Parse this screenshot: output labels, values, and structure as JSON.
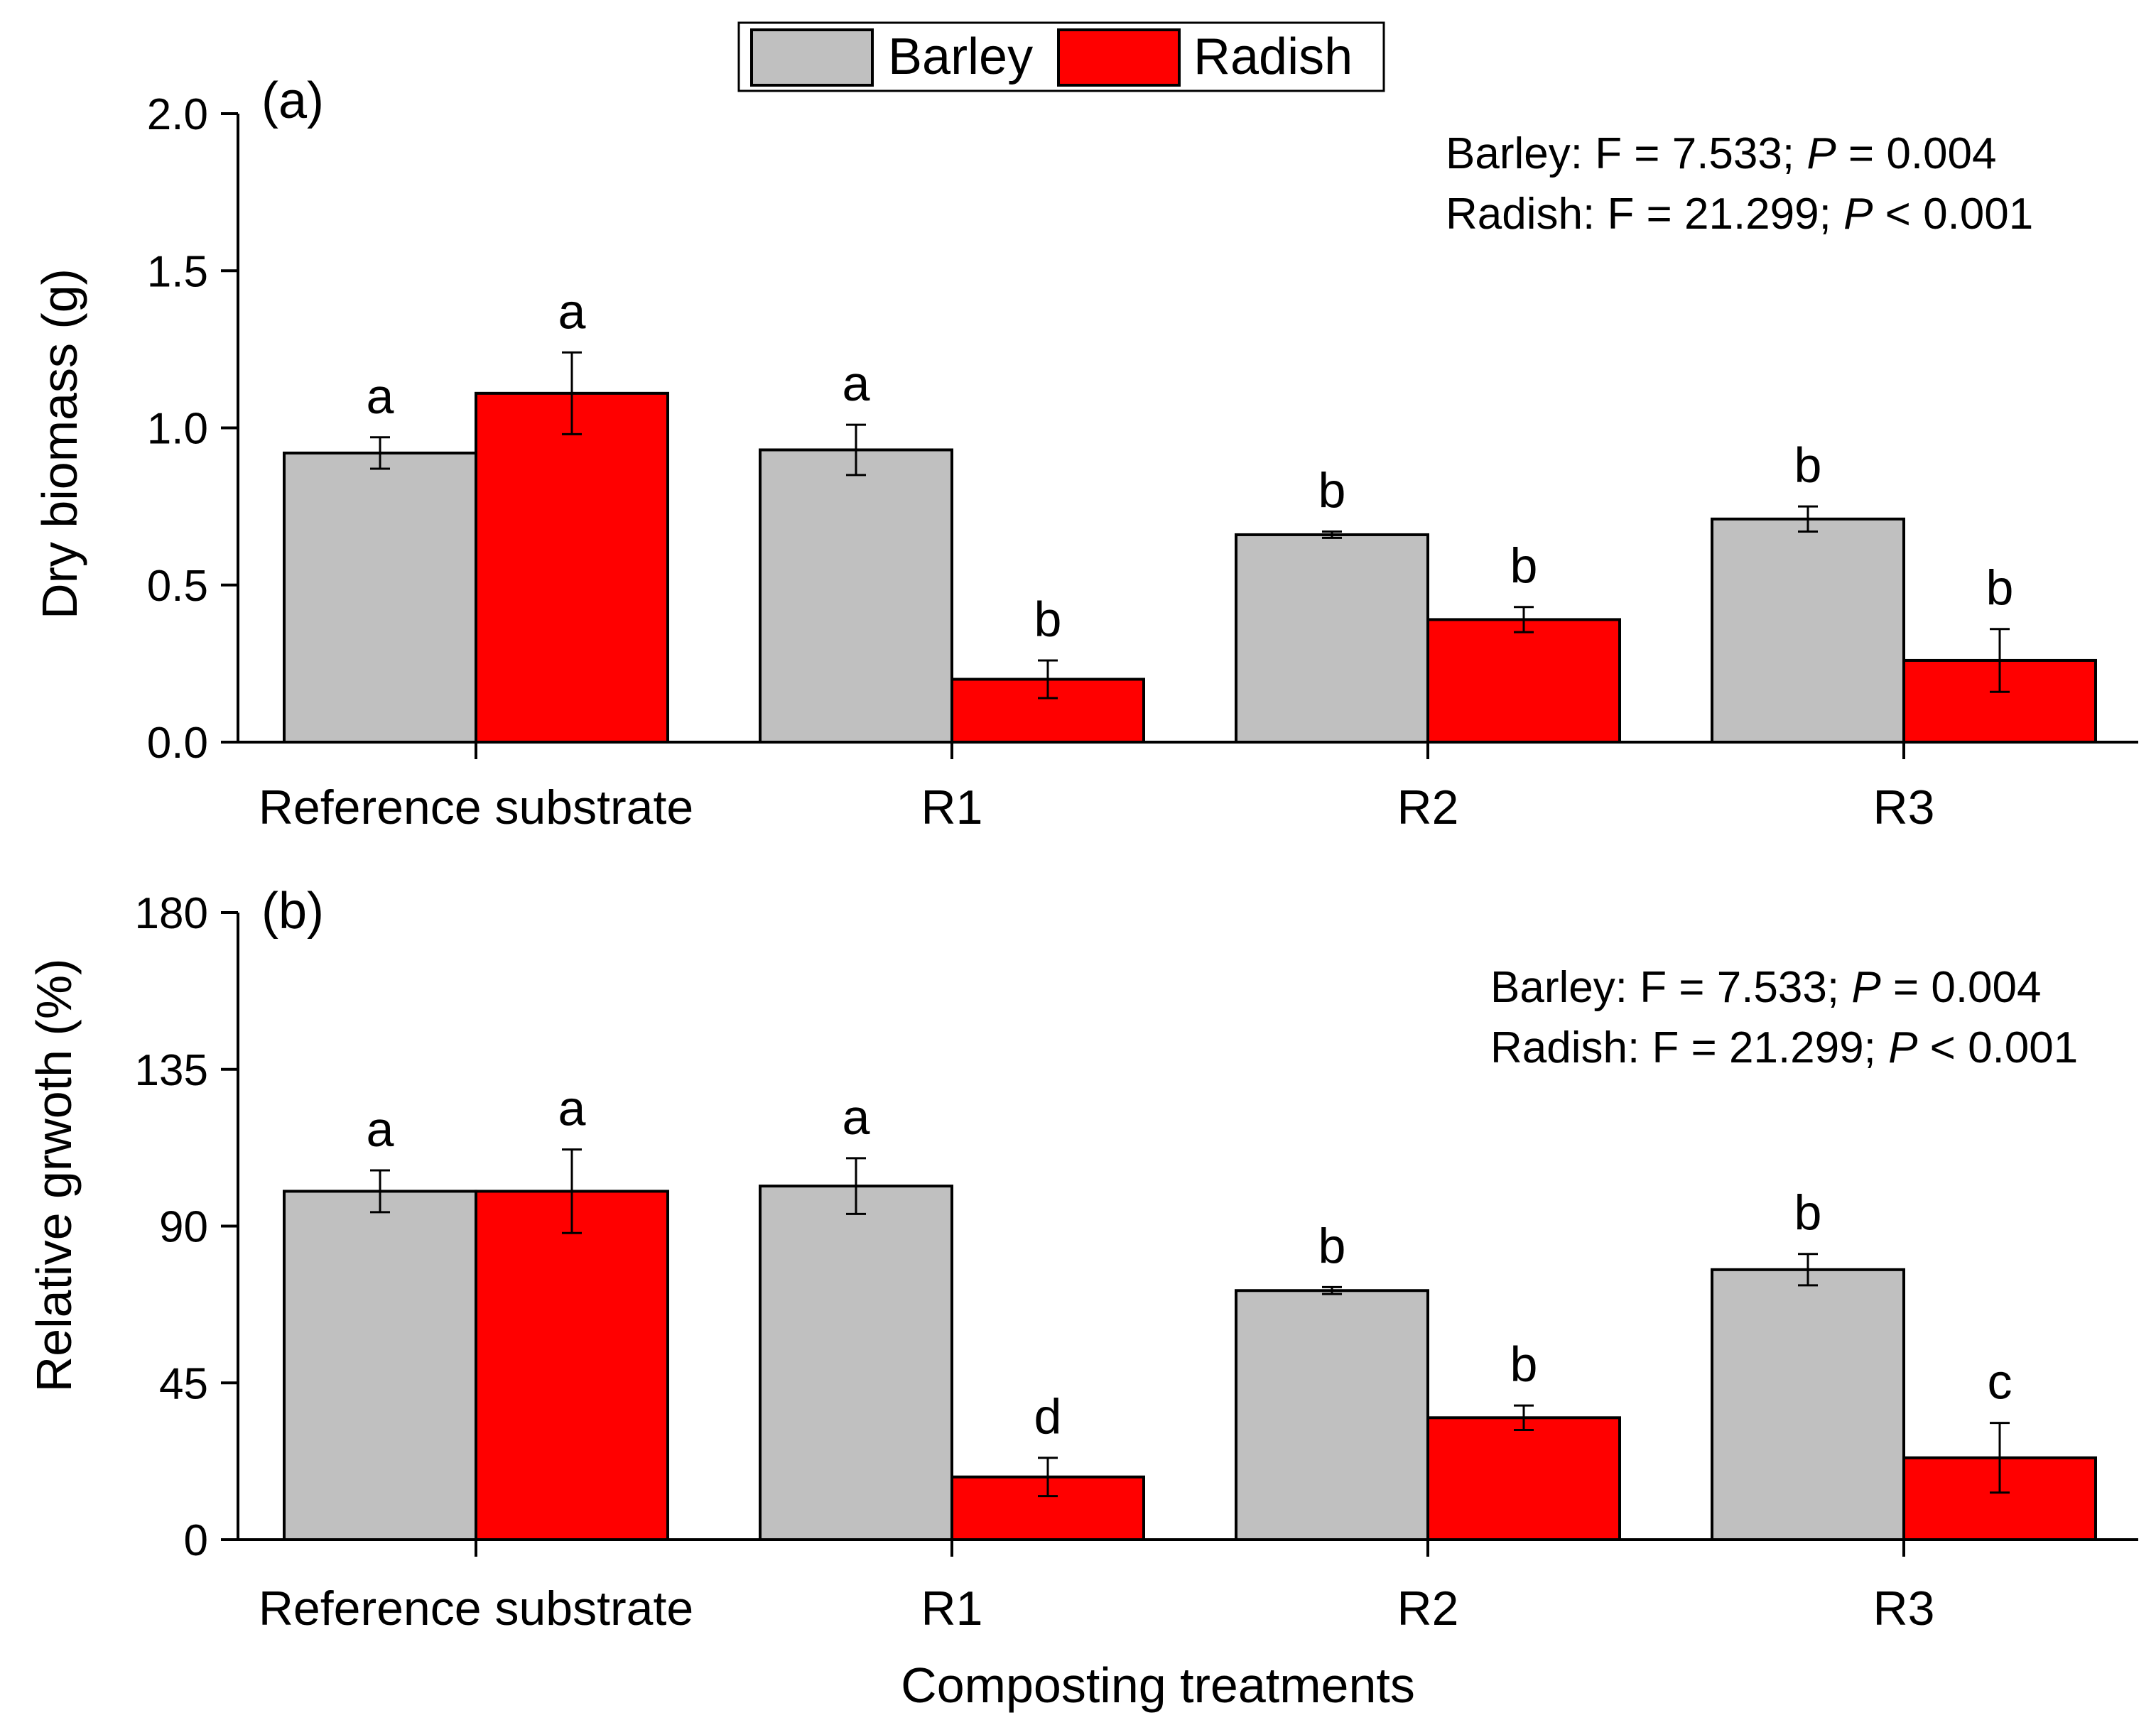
{
  "legend": {
    "items": [
      {
        "label": "Barley",
        "color": "#C0C0C0"
      },
      {
        "label": "Radish",
        "color": "#FF0000"
      }
    ]
  },
  "chart_data": [
    {
      "type": "bar",
      "panel_label": "(a)",
      "title": "",
      "xlabel": "",
      "ylabel": "Dry biomass (g)",
      "ylim": [
        0,
        2.0
      ],
      "yticks": [
        "0.0",
        "0.5",
        "1.0",
        "1.5",
        "2.0"
      ],
      "ytick_values": [
        0,
        0.5,
        1.0,
        1.5,
        2.0
      ],
      "categories": [
        "Reference substrate",
        "R1",
        "R2",
        "R3"
      ],
      "series": [
        {
          "name": "Barley",
          "values": [
            0.92,
            0.93,
            0.66,
            0.71
          ],
          "errors": [
            0.05,
            0.08,
            0.01,
            0.04
          ],
          "letters": [
            "a",
            "a",
            "b",
            "b"
          ]
        },
        {
          "name": "Radish",
          "values": [
            1.11,
            0.2,
            0.39,
            0.26
          ],
          "errors": [
            0.13,
            0.06,
            0.04,
            0.1
          ],
          "letters": [
            "a",
            "b",
            "b",
            "b"
          ]
        }
      ],
      "stats": [
        {
          "prefix": "Barley: F = 7.533; ",
          "p": "P",
          "suffix": " = 0.004"
        },
        {
          "prefix": "Radish: F = 21.299; ",
          "p": "P",
          "suffix": " < 0.001"
        }
      ]
    },
    {
      "type": "bar",
      "panel_label": "(b)",
      "title": "",
      "xlabel": "Composting treatments",
      "ylabel": "Relative grwoth (%)",
      "ylim": [
        0,
        180
      ],
      "yticks": [
        "0",
        "45",
        "90",
        "135",
        "180"
      ],
      "ytick_values": [
        0,
        45,
        90,
        135,
        180
      ],
      "categories": [
        "Reference substrate",
        "R1",
        "R2",
        "R3"
      ],
      "series": [
        {
          "name": "Barley",
          "values": [
            100,
            101.5,
            71.5,
            77.5
          ],
          "errors": [
            6,
            8,
            1,
            4.5
          ],
          "letters": [
            "a",
            "a",
            "b",
            "b"
          ]
        },
        {
          "name": "Radish",
          "values": [
            100,
            18,
            35,
            23.5
          ],
          "errors": [
            12,
            5.5,
            3.5,
            10
          ],
          "letters": [
            "a",
            "d",
            "b",
            "c"
          ]
        }
      ],
      "stats": [
        {
          "prefix": "Barley: F = 7.533; ",
          "p": "P",
          "suffix": " = 0.004"
        },
        {
          "prefix": "Radish: F = 21.299; ",
          "p": "P",
          "suffix": " < 0.001"
        }
      ]
    }
  ]
}
